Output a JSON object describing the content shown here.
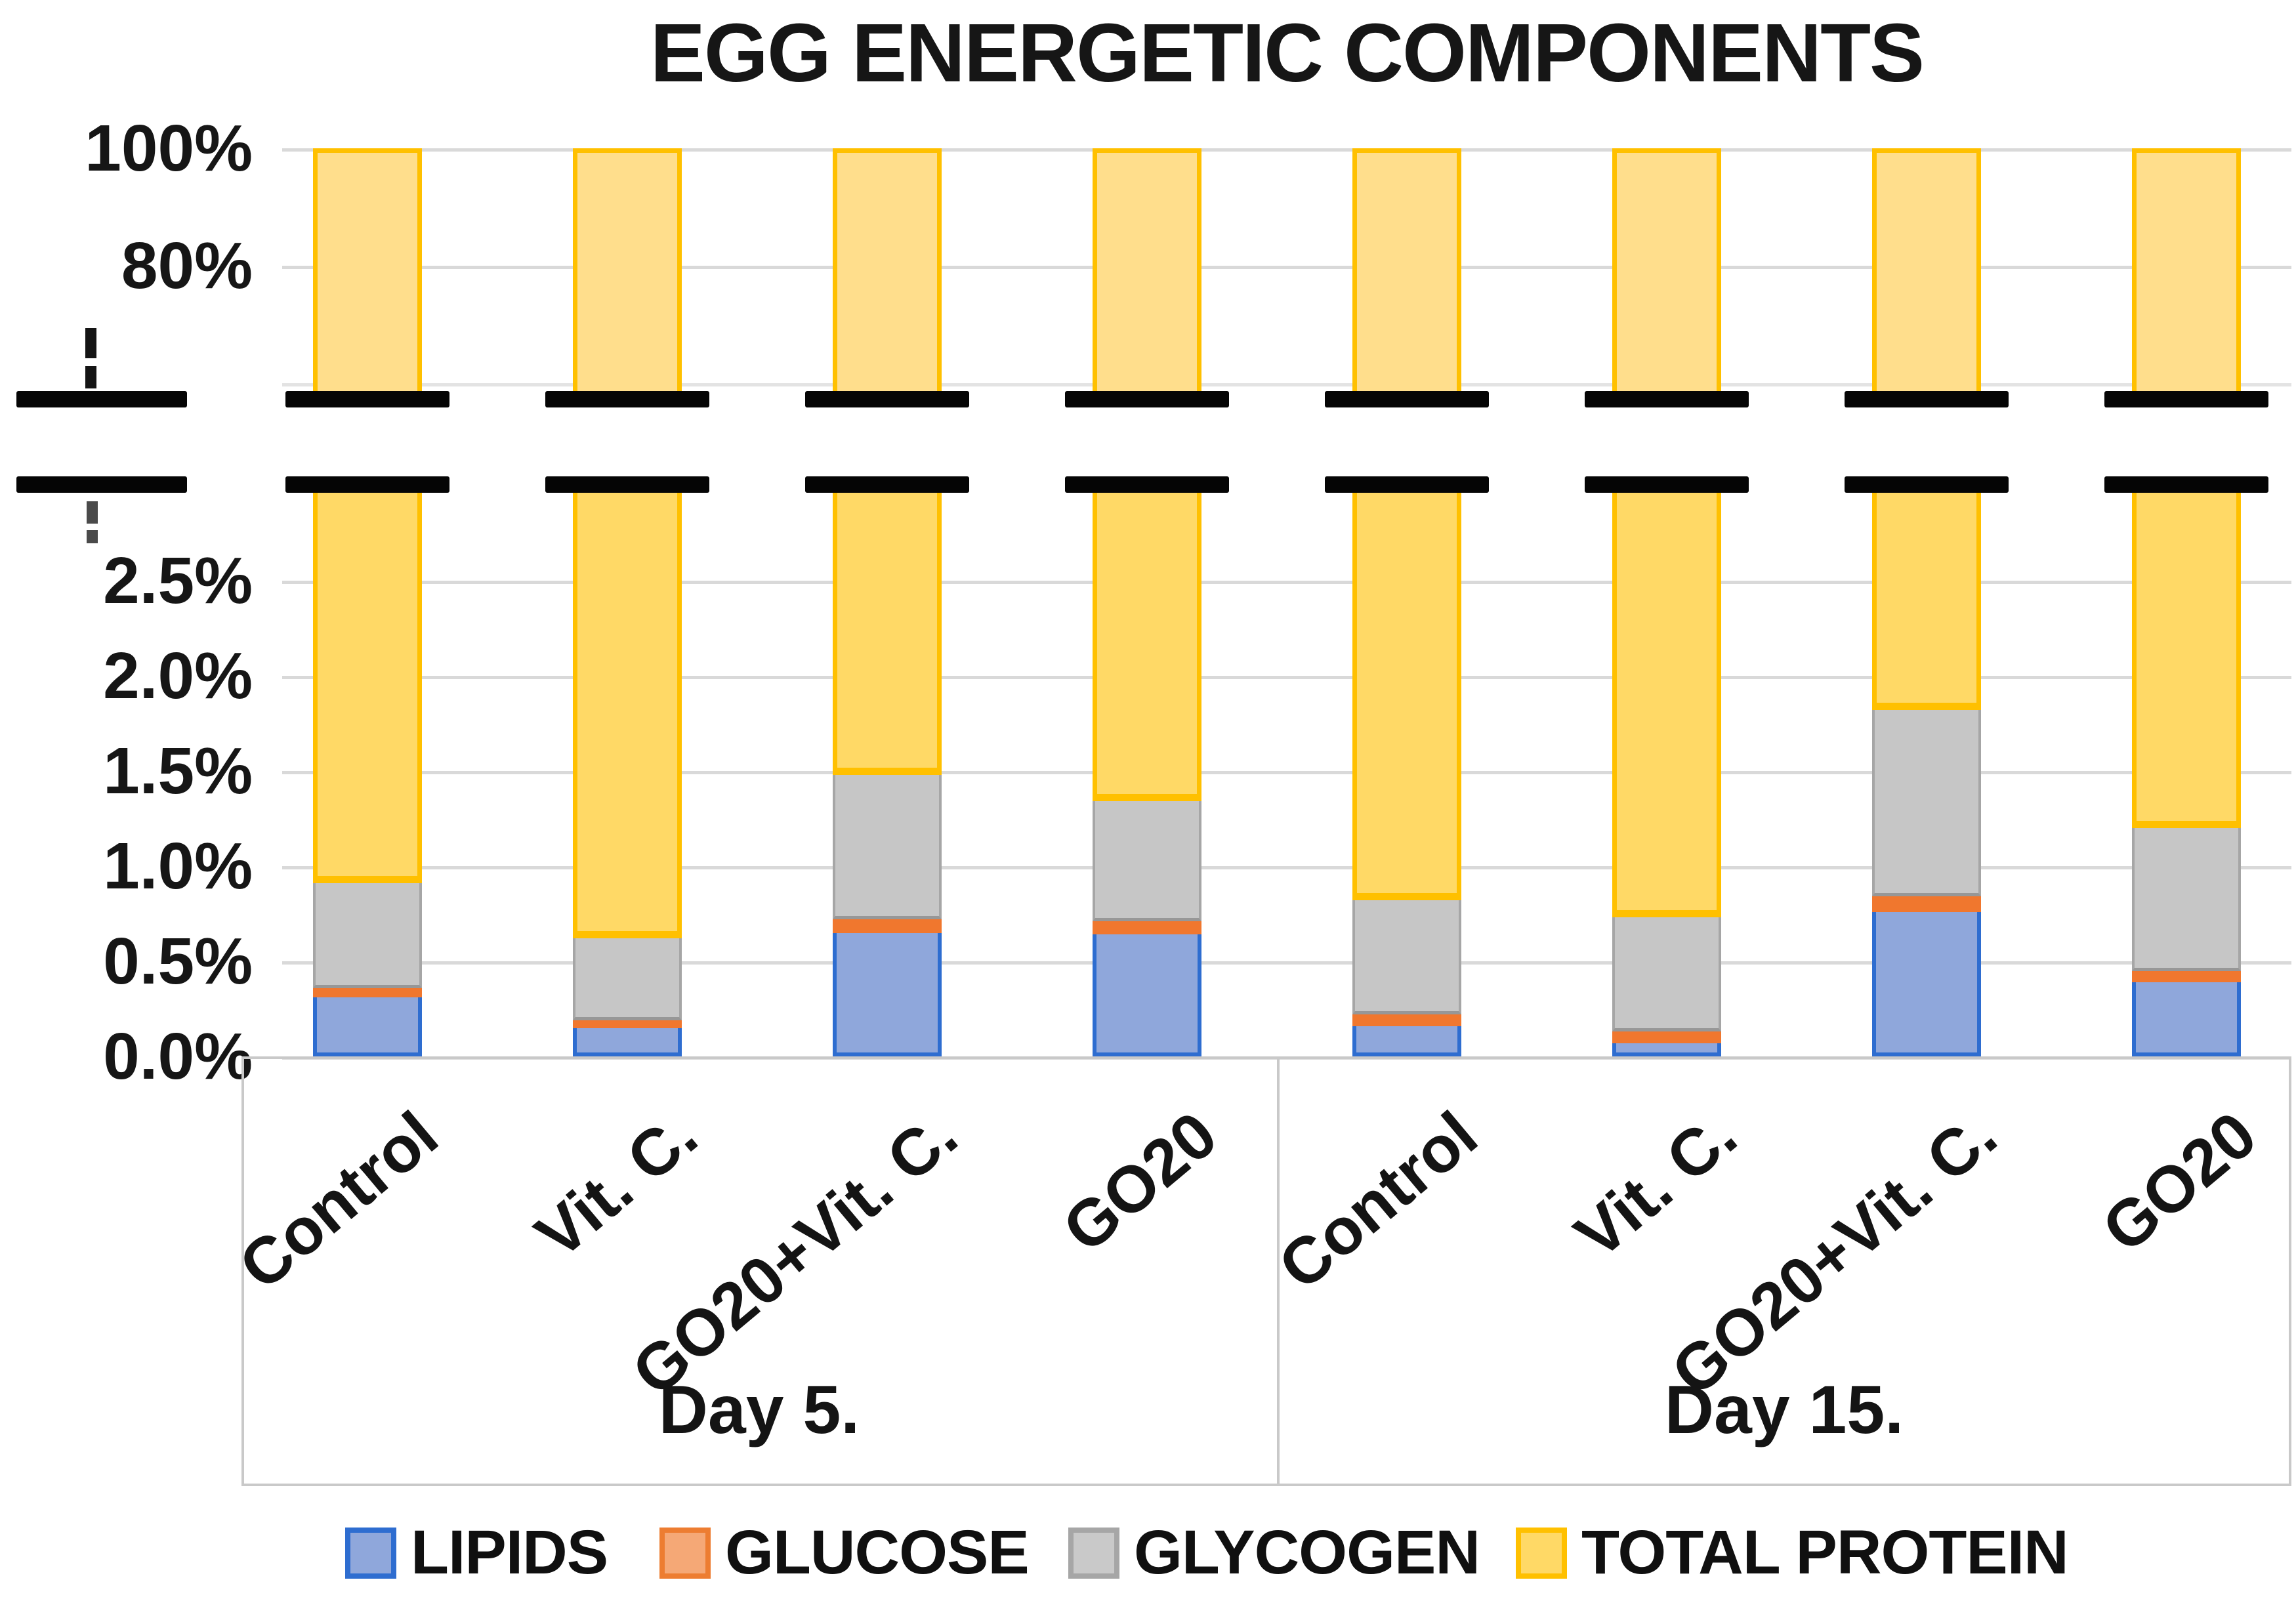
{
  "chart_data": {
    "type": "bar",
    "subtype": "stacked-100pct-broken-axis",
    "title": "EGG ENERGETIC COMPONENTS",
    "groups": [
      {
        "label": "Day 5.",
        "categories": [
          "Control",
          "Vit. C.",
          "GO20+Vit. C.",
          "GO20"
        ]
      },
      {
        "label": "Day 15.",
        "categories": [
          "Control",
          "Vit. C.",
          "GO20+Vit. C.",
          "GO20"
        ]
      }
    ],
    "series": [
      {
        "name": "LIPIDS",
        "fill": "#8FA7DB",
        "border": "#2E6DD0",
        "swatch_fill": "#8FA7DB",
        "swatch_border": "#2E6DD0",
        "values": [
          0.31,
          0.15,
          0.65,
          0.64,
          0.16,
          0.07,
          0.76,
          0.39
        ]
      },
      {
        "name": "GLUCOSE",
        "fill": "#F0772E",
        "border": "#ED7D31",
        "swatch_fill": "#F5A876",
        "swatch_border": "#ED7D31",
        "values": [
          0.05,
          0.04,
          0.07,
          0.07,
          0.06,
          0.06,
          0.08,
          0.06
        ]
      },
      {
        "name": "GLYCOGEN",
        "fill": "#C6C6C6",
        "border": "#A6A6A6",
        "swatch_fill": "#C9C9C9",
        "swatch_border": "#A6A6A6",
        "values": [
          0.55,
          0.43,
          0.76,
          0.63,
          0.6,
          0.6,
          0.98,
          0.75
        ]
      },
      {
        "name": "TOTAL PROTEIN",
        "fill": "#FFD966",
        "fill_top": "#FFDE8C",
        "border": "#FFC000",
        "swatch_fill": "#FFD966",
        "swatch_border": "#FFC000",
        "values": [
          99.09,
          99.38,
          98.52,
          98.66,
          99.18,
          99.27,
          98.18,
          98.8
        ]
      }
    ],
    "axis": {
      "broken_axis": true,
      "upper_ticks": [
        {
          "label": "100%",
          "value": 100
        },
        {
          "label": "80%",
          "value": 80
        }
      ],
      "upper_unlabeled_gridlines": [
        60
      ],
      "upper_range": [
        60,
        100
      ],
      "lower_ticks": [
        {
          "label": "2.5%",
          "value": 2.5
        },
        {
          "label": "2.0%",
          "value": 2.0
        },
        {
          "label": "1.5%",
          "value": 1.5
        },
        {
          "label": "1.0%",
          "value": 1.0
        },
        {
          "label": "0.5%",
          "value": 0.5
        },
        {
          "label": "0.0%",
          "value": 0.0
        }
      ],
      "lower_range": [
        0,
        3.0
      ],
      "grid": true,
      "legend_position": "bottom"
    }
  }
}
